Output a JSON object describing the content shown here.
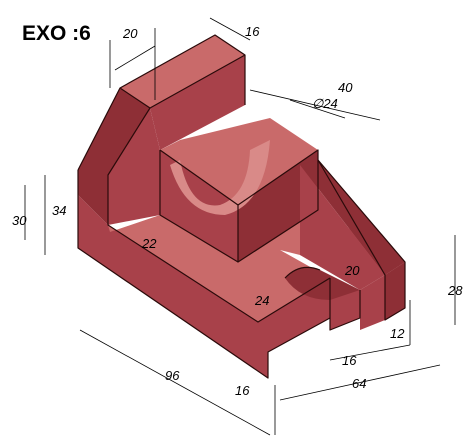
{
  "title": "EXO :6",
  "dimensions": {
    "d20_top": "20",
    "d16_top": "16",
    "d40": "40",
    "d24_dia": "∅24",
    "d30": "30",
    "d34": "34",
    "d22": "22",
    "d24_mid": "24",
    "d20_slot": "20",
    "d28": "28",
    "d96": "96",
    "d16_bottom": "16",
    "d64": "64",
    "d16_right": "16",
    "d12": "12"
  },
  "colors": {
    "top": "#c96a6a",
    "front": "#a8414a",
    "side": "#8e2f36"
  }
}
